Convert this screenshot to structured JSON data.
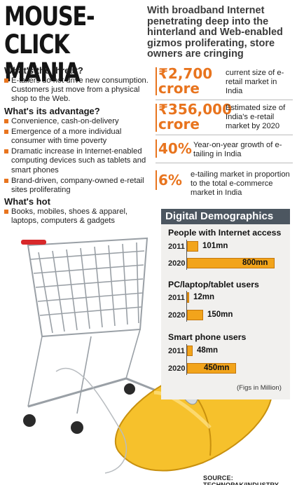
{
  "headline": {
    "line1": "MOUSE-CLICK",
    "line2": "MANIA"
  },
  "intro": "With broadband Internet penetrating deep into the hinterland and Web-enabled gizmos proliferating, store owners are cringing",
  "sections": [
    {
      "title": "What's the threat?",
      "bullets": [
        "E-tailers do not drive new consumption. Customers just move from a physical shop to the Web."
      ]
    },
    {
      "title": "What's its advantage?",
      "bullets": [
        "Convenience, cash-on-delivery",
        "Emergence of a more individual consumer with time poverty",
        "Dramatic increase in Internet-enabled computing devices such as tablets and smart phones",
        "Brand-driven, company-owned e-retail sites proliferating"
      ]
    },
    {
      "title": "What's hot",
      "bullets": [
        "Books, mobiles, shoes & apparel, laptops, computers & gadgets"
      ]
    }
  ],
  "stats": [
    {
      "big1": "₹2,700",
      "big2": "crore",
      "desc": "current size of e-retail market in India"
    },
    {
      "big1": "₹356,000",
      "big2": "crore",
      "desc": "Estimated size of India's e-retail market by 2020"
    },
    {
      "big1": "40%",
      "big2": "",
      "desc": "Year-on-year growth of e-tailing in India"
    },
    {
      "big1": "6%",
      "big2": "",
      "desc": "e-tailing market in proportion to the total e-commerce market in India"
    }
  ],
  "chart_data": {
    "type": "bar",
    "title": "Digital Demographics",
    "unit_note": "(Figs in Million)",
    "source": "SOURCE: TECHNOPAK/INDUSTRY",
    "colors": {
      "bar": "#f2a41b",
      "accent": "#e8741e",
      "header": "#4c5660"
    },
    "groups": [
      {
        "name": "People with Internet access",
        "categories": [
          "2011",
          "2020"
        ],
        "values": [
          101,
          800
        ],
        "labels": [
          "101mn",
          "800mn"
        ]
      },
      {
        "name": "PC/laptop/tablet users",
        "categories": [
          "2011",
          "2020"
        ],
        "values": [
          12,
          150
        ],
        "labels": [
          "12mn",
          "150mn"
        ]
      },
      {
        "name": "Smart phone users",
        "categories": [
          "2011",
          "2020"
        ],
        "values": [
          48,
          450
        ],
        "labels": [
          "48mn",
          "450mn"
        ]
      }
    ]
  }
}
